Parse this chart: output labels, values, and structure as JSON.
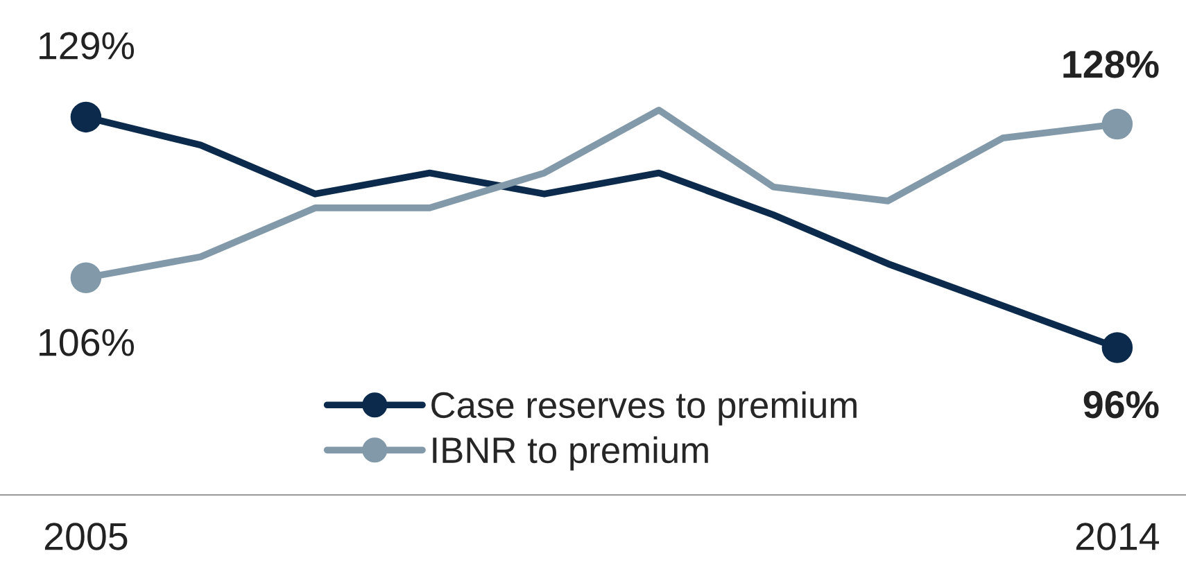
{
  "chart_data": {
    "type": "line",
    "categories": [
      "2005",
      null,
      null,
      null,
      null,
      null,
      null,
      null,
      null,
      "2014"
    ],
    "series": [
      {
        "name": "Case reserves to premium",
        "color": "#0b2a4c",
        "values": [
          129,
          125,
          118,
          121,
          118,
          121,
          115,
          108,
          102,
          96
        ],
        "value_labels": [
          "129%",
          null,
          null,
          null,
          null,
          null,
          null,
          null,
          null,
          "96%"
        ]
      },
      {
        "name": "IBNR to premium",
        "color": "#8299a9",
        "values": [
          106,
          109,
          116,
          116,
          121,
          130,
          119,
          117,
          126,
          128
        ],
        "value_labels": [
          "106%",
          null,
          null,
          null,
          null,
          null,
          null,
          null,
          null,
          "128%"
        ]
      }
    ],
    "line_style": "solid",
    "grid": false,
    "legend": "bottom"
  }
}
